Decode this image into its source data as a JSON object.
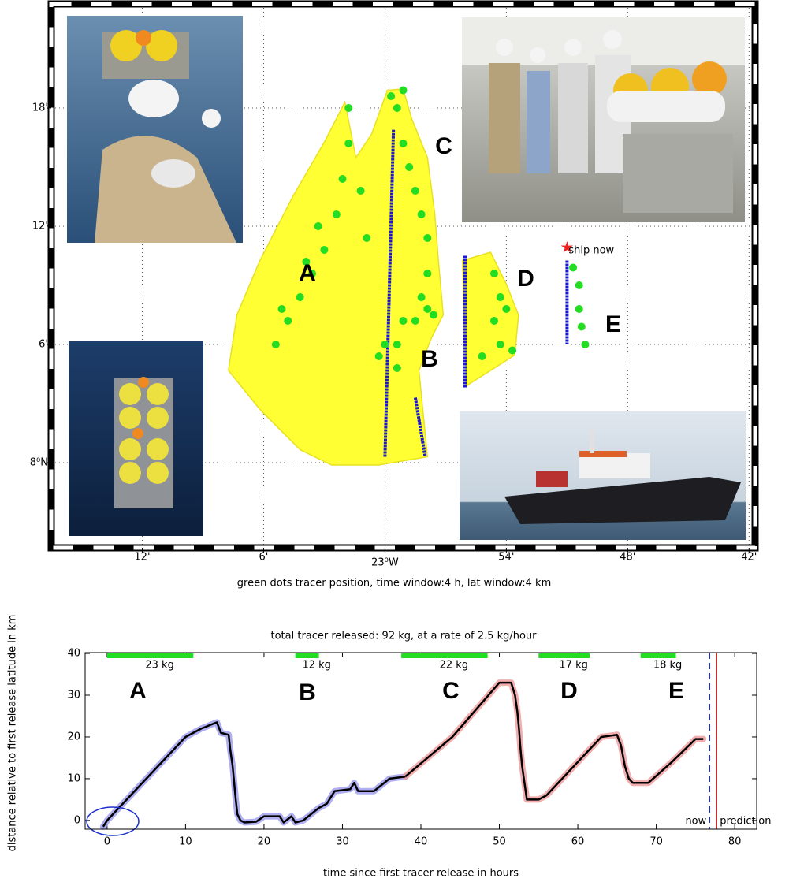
{
  "chart_data": [
    {
      "type": "map",
      "caption": "green dots tracer position, time window:4 h,  lat window:4 km",
      "xlim": [
        -23.275,
        -22.695
      ],
      "ylim": [
        7.928,
        8.388
      ],
      "grid": true,
      "xticks": [
        {
          "value": -23.2,
          "label": "12'"
        },
        {
          "value": -23.1,
          "label": "6'"
        },
        {
          "value": -23.0,
          "label": "23⁰W"
        },
        {
          "value": -22.9,
          "label": "54'"
        },
        {
          "value": -22.8,
          "label": "48'"
        },
        {
          "value": -22.7,
          "label": "42'"
        }
      ],
      "yticks": [
        {
          "value": 8.0,
          "label": "8⁰N"
        },
        {
          "value": 8.1,
          "label": "6'"
        },
        {
          "value": 8.2,
          "label": "12'"
        },
        {
          "value": 8.3,
          "label": "18'"
        }
      ],
      "areas": {
        "color": "#ffff33",
        "polygons": [
          {
            "x": [
              -23.129,
              -23.122,
              -23.103,
              -23.076,
              -23.05,
              -23.033,
              -23.024,
              -23.011,
              -22.998,
              -22.985,
              -22.978,
              -22.965,
              -22.959,
              -22.956,
              -22.952,
              -22.962,
              -22.972,
              -22.965,
              -23.005,
              -23.044,
              -23.07,
              -23.103
            ],
            "y": [
              8.078,
              8.125,
              8.171,
              8.225,
              8.271,
              8.305,
              8.258,
              8.278,
              8.315,
              8.316,
              8.291,
              8.258,
              8.211,
              8.171,
              8.125,
              8.105,
              8.078,
              8.005,
              7.998,
              7.998,
              8.011,
              8.045
            ]
          },
          {
            "x": [
              -22.936,
              -22.913,
              -22.9,
              -22.89,
              -22.893,
              -22.913,
              -22.933
            ],
            "y": [
              8.171,
              8.178,
              8.151,
              8.125,
              8.091,
              8.078,
              8.065
            ]
          }
        ]
      },
      "tracks": {
        "color": "#1a1acc",
        "x": [
          -23.0,
          -22.993,
          null,
          -22.975,
          -22.967,
          null,
          -22.934,
          -22.934,
          null,
          -22.85,
          -22.85
        ],
        "y": [
          8.005,
          8.282,
          null,
          8.055,
          8.006,
          null,
          8.175,
          8.063,
          null,
          8.171,
          8.1
        ]
      },
      "dots": {
        "color": "#22dd22",
        "x": [
          -23.09,
          -23.08,
          -23.07,
          -23.06,
          -23.05,
          -23.04,
          -23.035,
          -23.03,
          -23.03,
          -23.055,
          -23.065,
          -23.085,
          -23.02,
          -23.015,
          -23.0,
          -22.99,
          -23.005,
          -22.99,
          -22.985,
          -22.995,
          -22.99,
          -22.985,
          -22.985,
          -22.98,
          -22.975,
          -22.97,
          -22.965,
          -22.965,
          -22.97,
          -22.975,
          -22.96,
          -22.965,
          -22.91,
          -22.905,
          -22.9,
          -22.91,
          -22.905,
          -22.92,
          -22.895,
          -22.845,
          -22.84,
          -22.84,
          -22.838,
          -22.835
        ],
        "y": [
          8.1,
          8.12,
          8.14,
          8.16,
          8.18,
          8.21,
          8.24,
          8.27,
          8.3,
          8.2,
          8.17,
          8.13,
          8.23,
          8.19,
          8.1,
          8.1,
          8.09,
          8.08,
          8.12,
          8.31,
          8.3,
          8.315,
          8.27,
          8.25,
          8.23,
          8.21,
          8.19,
          8.16,
          8.14,
          8.12,
          8.125,
          8.13,
          8.16,
          8.14,
          8.13,
          8.12,
          8.1,
          8.09,
          8.095,
          8.165,
          8.15,
          8.13,
          8.115,
          8.1
        ]
      },
      "ship": {
        "label": "ship now",
        "x": -22.85,
        "y": 8.182,
        "color": "#ee2222"
      },
      "annotations": [
        "A",
        "B",
        "C",
        "D",
        "E"
      ]
    },
    {
      "type": "line",
      "title": "total tracer released: 92 kg, at a rate of   2.5 kg/hour",
      "xlabel": "time since first tracer release in hours",
      "ylabel": "distance relative to first release latitude in km",
      "xlim": [
        -2.8,
        82.8
      ],
      "ylim": [
        -2.1,
        40.2
      ],
      "xticks": [
        0,
        10,
        20,
        30,
        40,
        50,
        60,
        70,
        80
      ],
      "yticks": [
        0,
        10,
        20,
        30,
        40
      ],
      "line_color": "#000000",
      "series": [
        {
          "color": "#9a9aee",
          "x": [
            -0.5,
            0,
            5,
            10,
            12,
            14,
            14.5,
            15.5,
            15.7,
            16,
            16.2,
            16.4,
            16.6,
            17,
            17.5,
            19,
            20,
            22,
            22.5,
            23.5,
            24,
            25,
            27,
            28,
            29,
            31,
            31.5,
            32,
            34,
            36,
            38
          ],
          "values": [
            -1.5,
            0,
            10,
            20,
            22,
            23.5,
            21,
            20.5,
            17,
            13,
            9,
            5,
            1.5,
            0,
            -0.5,
            -0.3,
            1,
            1,
            -0.5,
            1,
            -0.5,
            0,
            3,
            4,
            7,
            7.5,
            9,
            7,
            7,
            10,
            10.5
          ]
        },
        {
          "color": "#ee9a9a",
          "x": [
            38,
            44,
            50,
            51.5,
            52,
            52.3,
            52.5,
            52.7,
            52.9,
            53.2,
            53.5,
            55,
            56,
            60,
            63,
            65,
            65.5,
            66,
            66.5,
            67,
            69,
            72,
            75,
            76
          ],
          "values": [
            10.5,
            20,
            33,
            33,
            30,
            26,
            22,
            17,
            13,
            9,
            5,
            5,
            6,
            14,
            20,
            20.5,
            18,
            13,
            10,
            9,
            9,
            14,
            19.5,
            19.5
          ]
        }
      ],
      "releases": {
        "color": "#22dd22",
        "items": [
          {
            "start": 0,
            "end": 11,
            "label": "23 kg"
          },
          {
            "start": 24,
            "end": 27,
            "label": "12 kg"
          },
          {
            "start": 37.5,
            "end": 48.5,
            "label": "22 kg"
          },
          {
            "start": 55,
            "end": 61.5,
            "label": "17 kg"
          },
          {
            "start": 68,
            "end": 72.5,
            "label": "18 kg"
          }
        ]
      },
      "annotations": [
        "A",
        "B",
        "C",
        "D",
        "E"
      ],
      "markers": [
        {
          "x": 76.8,
          "label": "now",
          "color": "#1a2fcc",
          "dashed": true
        },
        {
          "x": 77.7,
          "label": "prediction",
          "color": "#dd2222",
          "dashed": false
        }
      ]
    }
  ]
}
